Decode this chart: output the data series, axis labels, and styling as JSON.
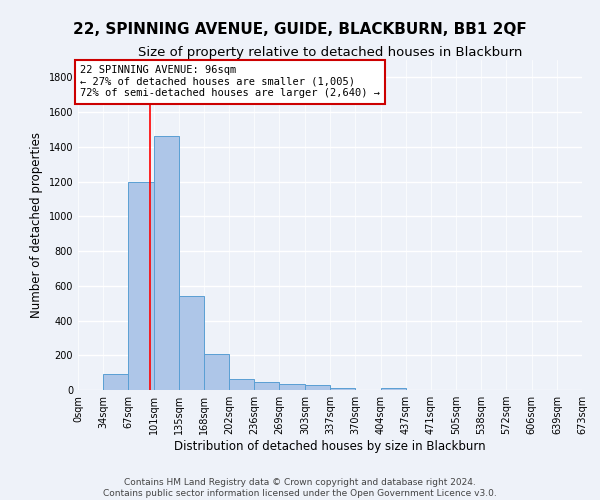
{
  "title": "22, SPINNING AVENUE, GUIDE, BLACKBURN, BB1 2QF",
  "subtitle": "Size of property relative to detached houses in Blackburn",
  "xlabel": "Distribution of detached houses by size in Blackburn",
  "ylabel": "Number of detached properties",
  "footer_line1": "Contains HM Land Registry data © Crown copyright and database right 2024.",
  "footer_line2": "Contains public sector information licensed under the Open Government Licence v3.0.",
  "bar_edges": [
    0,
    33.5,
    67,
    101,
    134.5,
    168,
    202,
    235.5,
    269,
    303,
    336.5,
    370,
    404,
    437.5,
    471,
    505,
    538.5,
    572,
    606,
    639.5,
    673
  ],
  "bar_heights": [
    0,
    90,
    1200,
    1460,
    540,
    205,
    65,
    45,
    35,
    28,
    10,
    0,
    12,
    0,
    0,
    0,
    0,
    0,
    0,
    0
  ],
  "tick_labels": [
    "0sqm",
    "34sqm",
    "67sqm",
    "101sqm",
    "135sqm",
    "168sqm",
    "202sqm",
    "236sqm",
    "269sqm",
    "303sqm",
    "337sqm",
    "370sqm",
    "404sqm",
    "437sqm",
    "471sqm",
    "505sqm",
    "538sqm",
    "572sqm",
    "606sqm",
    "639sqm",
    "673sqm"
  ],
  "bar_color": "#aec6e8",
  "bar_edge_color": "#5a9fd4",
  "red_line_x": 96,
  "annotation_text": "22 SPINNING AVENUE: 96sqm\n← 27% of detached houses are smaller (1,005)\n72% of semi-detached houses are larger (2,640) →",
  "annotation_box_color": "#ffffff",
  "annotation_box_edge": "#cc0000",
  "ylim": [
    0,
    1900
  ],
  "yticks": [
    0,
    200,
    400,
    600,
    800,
    1000,
    1200,
    1400,
    1600,
    1800
  ],
  "background_color": "#eef2f9",
  "grid_color": "#ffffff",
  "title_fontsize": 11,
  "subtitle_fontsize": 9.5,
  "axis_label_fontsize": 8.5,
  "tick_fontsize": 7,
  "annotation_fontsize": 7.5,
  "footer_fontsize": 6.5
}
